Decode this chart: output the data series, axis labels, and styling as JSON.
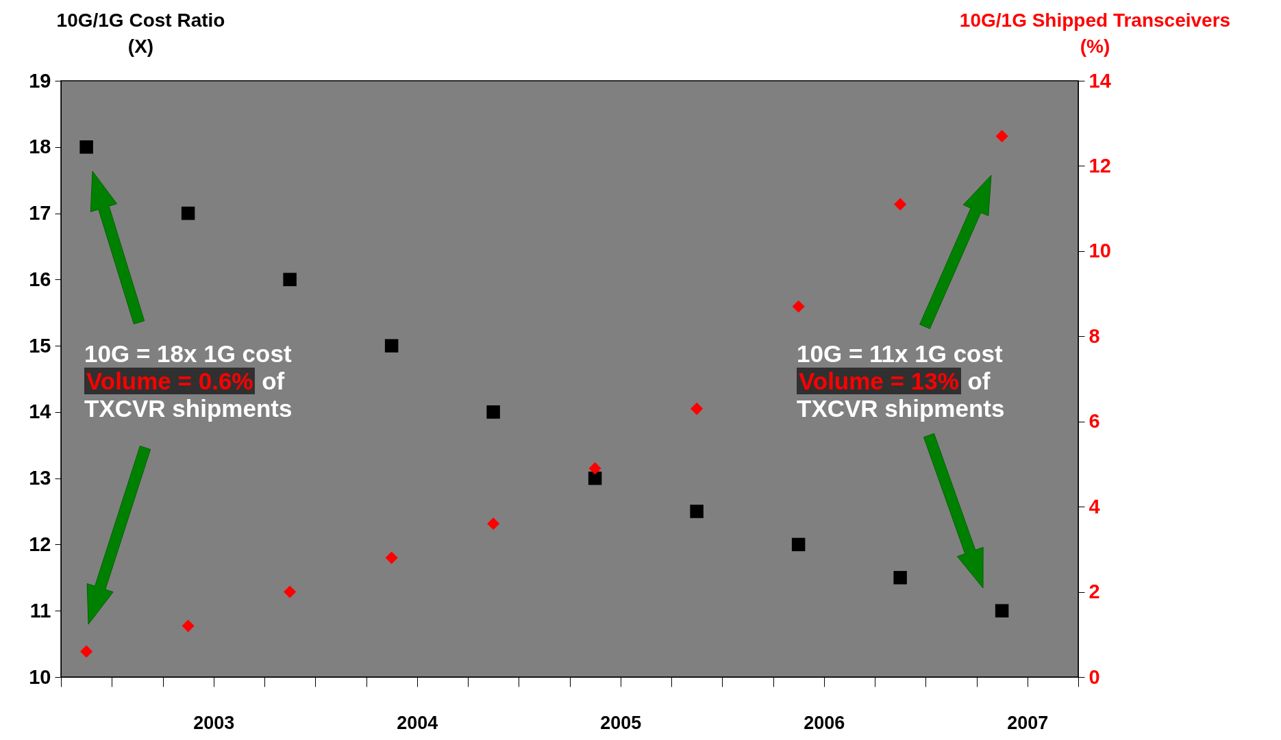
{
  "chart_data": {
    "type": "scatter",
    "ylabel": "10G/1G Cost Ratio (X)",
    "y2label": "10G/1G Shipped Transceivers (%)",
    "x": [
      2002.375,
      2002.875,
      2003.375,
      2003.875,
      2004.375,
      2004.875,
      2005.375,
      2005.875,
      2006.375,
      2006.875
    ],
    "series": [
      {
        "color": "#000000",
        "marker": "square",
        "values": [
          18,
          17,
          16,
          15,
          14,
          13,
          12.5,
          12,
          11.5,
          11
        ]
      },
      {
        "color": "#ff0000",
        "marker": "diamond",
        "axis": "y2",
        "values": [
          0.6,
          1.2,
          2.0,
          2.8,
          3.6,
          4.9,
          6.3,
          8.7,
          11.1,
          12.7
        ]
      }
    ],
    "xlim": [
      2002.25,
      2007.25
    ],
    "xticks": [
      {
        "value": 2002.25,
        "label": null
      },
      {
        "value": 2002.5,
        "label": null
      },
      {
        "value": 2002.75,
        "label": null
      },
      2003,
      {
        "value": 2003.25,
        "label": null
      },
      {
        "value": 2003.5,
        "label": null
      },
      {
        "value": 2003.75,
        "label": null
      },
      2004,
      {
        "value": 2004.25,
        "label": null
      },
      {
        "value": 2004.5,
        "label": null
      },
      {
        "value": 2004.75,
        "label": null
      },
      2005,
      {
        "value": 2005.25,
        "label": null
      },
      {
        "value": 2005.5,
        "label": null
      },
      {
        "value": 2005.75,
        "label": null
      },
      2006,
      {
        "value": 2006.25,
        "label": null
      },
      {
        "value": 2006.5,
        "label": null
      },
      {
        "value": 2006.75,
        "label": null
      },
      2007,
      {
        "value": 2007.25,
        "label": null
      }
    ],
    "ylim": [
      10,
      19
    ],
    "yticks": [
      10,
      11,
      12,
      13,
      14,
      15,
      16,
      17,
      18,
      19
    ],
    "y2lim": [
      0,
      14
    ],
    "y2ticks": [
      0,
      2,
      4,
      6,
      8,
      10,
      12,
      14
    ],
    "grid": false,
    "annotations": [
      "10G = 18x 1G cost",
      "Volume = 0.6%",
      "of",
      "TXCVR shipments",
      "10G = 11x 1G cost",
      "Volume = 13%",
      "of",
      "TXCVR shipments"
    ]
  }
}
